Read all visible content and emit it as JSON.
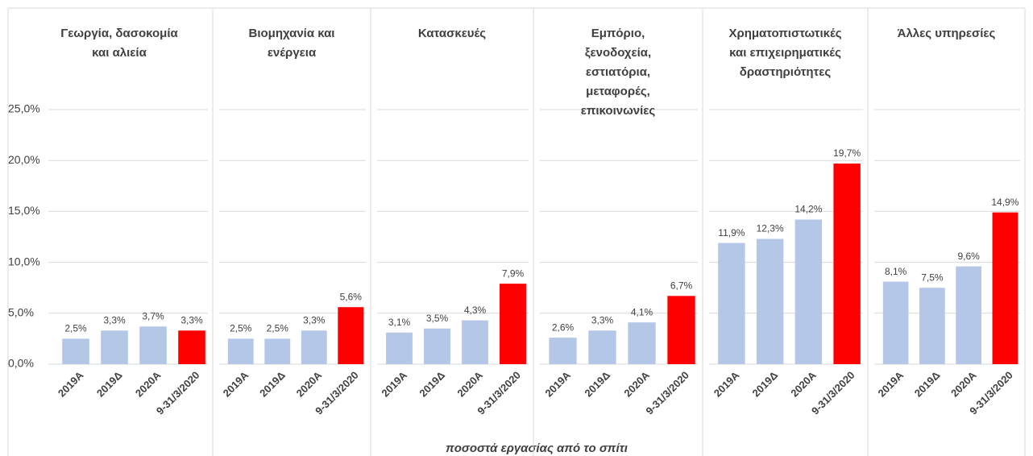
{
  "chart_data": {
    "type": "bar",
    "x_label": "ποσοστά εργασίας από το σπίτι",
    "ylim": [
      0,
      25
    ],
    "yticks": [
      {
        "value": 0,
        "label": "0,0%"
      },
      {
        "value": 5,
        "label": "5,0%"
      },
      {
        "value": 10,
        "label": "10,0%"
      },
      {
        "value": 15,
        "label": "15,0%"
      },
      {
        "value": 20,
        "label": "20,0%"
      },
      {
        "value": 25,
        "label": "25,0%"
      }
    ],
    "grid": true,
    "panels": [
      {
        "title": [
          "Γεωργία, δασοκομία",
          "και αλιεία"
        ],
        "categories": [
          "2019Α",
          "2019Δ",
          "2020Α",
          "9-31/3/2020"
        ],
        "values": [
          2.5,
          3.3,
          3.7,
          3.3
        ],
        "value_labels": [
          "2,5%",
          "3,3%",
          "3,7%",
          "3,3%"
        ],
        "colors": [
          "#b4c7e7",
          "#b4c7e7",
          "#b4c7e7",
          "#ff0000"
        ]
      },
      {
        "title": [
          "Βιομηχανία και",
          "ενέργεια"
        ],
        "categories": [
          "2019Α",
          "2019Δ",
          "2020Α",
          "9-31/3/2020"
        ],
        "values": [
          2.5,
          2.5,
          3.3,
          5.6
        ],
        "value_labels": [
          "2,5%",
          "2,5%",
          "3,3%",
          "5,6%"
        ],
        "colors": [
          "#b4c7e7",
          "#b4c7e7",
          "#b4c7e7",
          "#ff0000"
        ]
      },
      {
        "title": [
          "Κατασκευές"
        ],
        "categories": [
          "2019Α",
          "2019Δ",
          "2020Α",
          "9-31/3/2020"
        ],
        "values": [
          3.1,
          3.5,
          4.3,
          7.9
        ],
        "value_labels": [
          "3,1%",
          "3,5%",
          "4,3%",
          "7,9%"
        ],
        "colors": [
          "#b4c7e7",
          "#b4c7e7",
          "#b4c7e7",
          "#ff0000"
        ]
      },
      {
        "title": [
          "Εμπόριο,",
          "ξενοδοχεία,",
          "εστιατόρια,",
          "μεταφορές,",
          "επικοινωνίες"
        ],
        "categories": [
          "2019Α",
          "2019Δ",
          "2020Α",
          "9-31/3/2020"
        ],
        "values": [
          2.6,
          3.3,
          4.1,
          6.7
        ],
        "value_labels": [
          "2,6%",
          "3,3%",
          "4,1%",
          "6,7%"
        ],
        "colors": [
          "#b4c7e7",
          "#b4c7e7",
          "#b4c7e7",
          "#ff0000"
        ]
      },
      {
        "title": [
          "Χρηματοπιστωτικές",
          "και επιχειρηματικές",
          "δραστηριότητες"
        ],
        "categories": [
          "2019Α",
          "2019Δ",
          "2020Α",
          "9-31/3/2020"
        ],
        "values": [
          11.9,
          12.3,
          14.2,
          19.7
        ],
        "value_labels": [
          "11,9%",
          "12,3%",
          "14,2%",
          "19,7%"
        ],
        "colors": [
          "#b4c7e7",
          "#b4c7e7",
          "#b4c7e7",
          "#ff0000"
        ]
      },
      {
        "title": [
          "Άλλες υπηρεσίες"
        ],
        "categories": [
          "2019Α",
          "2019Δ",
          "2020Α",
          "9-31/3/2020"
        ],
        "values": [
          8.1,
          7.5,
          9.6,
          14.9
        ],
        "value_labels": [
          "8,1%",
          "7,5%",
          "9,6%",
          "14,9%"
        ],
        "colors": [
          "#b4c7e7",
          "#b4c7e7",
          "#b4c7e7",
          "#ff0000"
        ]
      }
    ]
  }
}
